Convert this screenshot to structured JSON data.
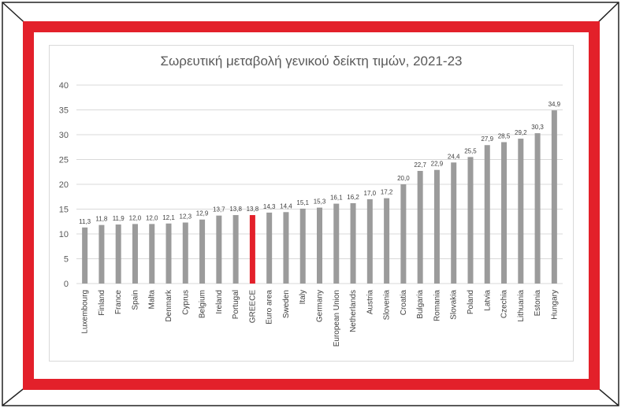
{
  "colors": {
    "red_border": "#e3202a",
    "bar_gray": "#9b9b9b",
    "bar_highlight": "#e3202a",
    "gridline": "#d9d9d9",
    "frame_line": "#222222"
  },
  "chart_data": {
    "type": "bar",
    "title": "Σωρευτική μεταβολή γενικού δείκτη τιμών, 2021-23",
    "xlabel": "",
    "ylabel": "",
    "ylim": [
      0,
      40
    ],
    "yticks": [
      0,
      5,
      10,
      15,
      20,
      25,
      30,
      35,
      40
    ],
    "grid": true,
    "highlight_category": "GREECE",
    "categories": [
      "Luxembourg",
      "Finland",
      "France",
      "Spain",
      "Malta",
      "Denmark",
      "Cyprus",
      "Belgium",
      "Ireland",
      "Portugal",
      "GREECE",
      "Euro area",
      "Sweden",
      "Italy",
      "Germany",
      "European Union",
      "Netherlands",
      "Austria",
      "Slovenia",
      "Croatia",
      "Bulgaria",
      "Romania",
      "Slovakia",
      "Poland",
      "Latvia",
      "Czechia",
      "Lithuania",
      "Estonia",
      "Hungary"
    ],
    "values": [
      11.3,
      11.8,
      11.9,
      12.0,
      12.0,
      12.1,
      12.3,
      12.9,
      13.7,
      13.8,
      13.8,
      14.3,
      14.4,
      15.1,
      15.3,
      16.1,
      16.2,
      17.0,
      17.2,
      20.0,
      22.7,
      22.9,
      24.4,
      25.5,
      27.9,
      28.5,
      29.2,
      30.3,
      34.9
    ],
    "value_labels": [
      "11,3",
      "11,8",
      "11,9",
      "12,0",
      "12,0",
      "12,1",
      "12,3",
      "12,9",
      "13,7",
      "13,8",
      "13,8",
      "14,3",
      "14,4",
      "15,1",
      "15,3",
      "16,1",
      "16,2",
      "17,0",
      "17,2",
      "20,0",
      "22,7",
      "22,9",
      "24,4",
      "25,5",
      "27,9",
      "28,5",
      "29,2",
      "30,3",
      "34,9"
    ]
  }
}
